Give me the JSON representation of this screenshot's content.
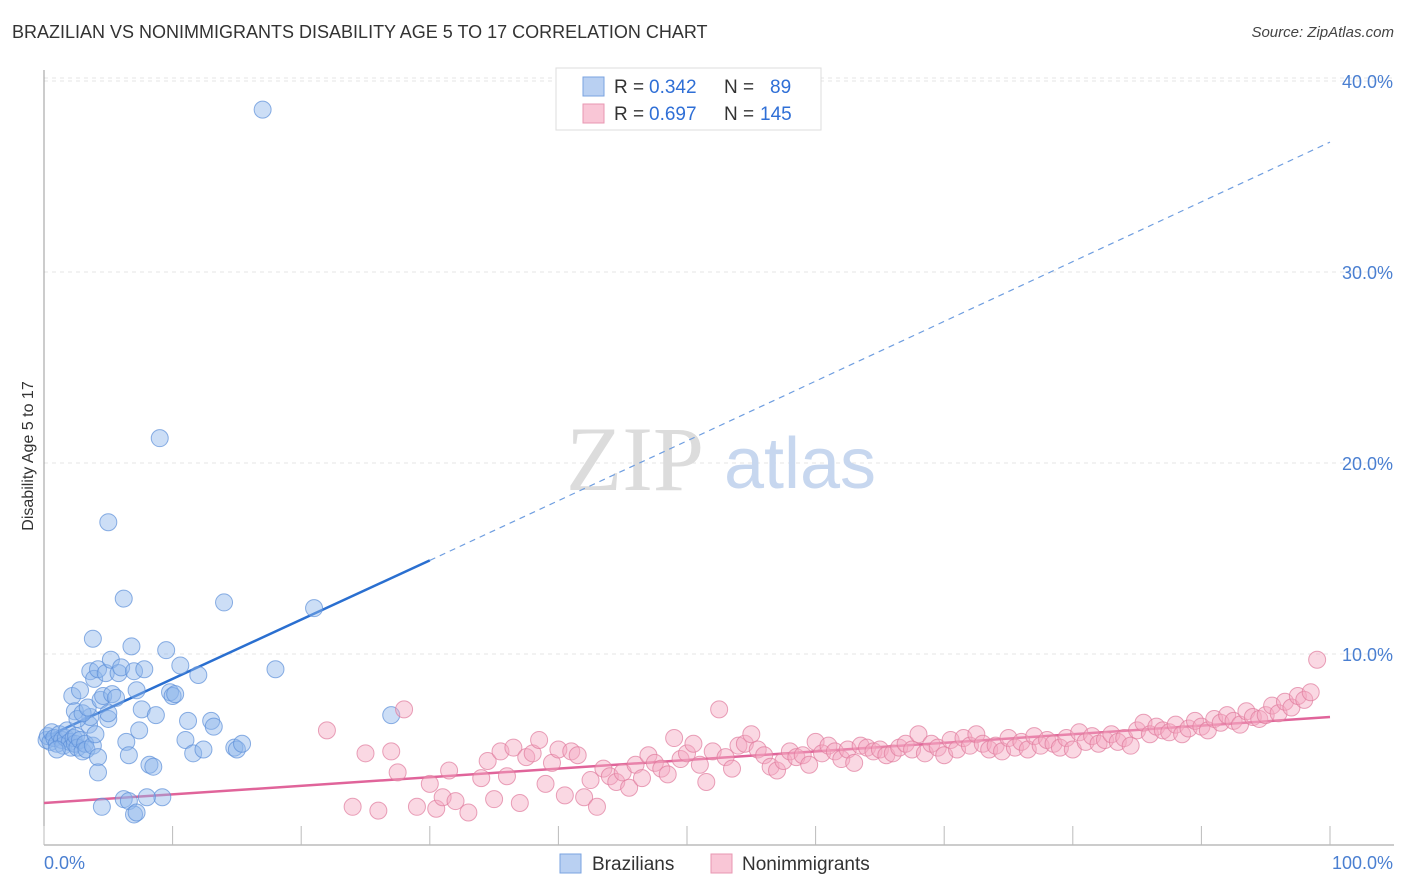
{
  "title": "BRAZILIAN VS NONIMMIGRANTS DISABILITY AGE 5 TO 17 CORRELATION CHART",
  "source": "Source: ZipAtlas.com",
  "chart_data": {
    "type": "scatter",
    "title": "BRAZILIAN VS NONIMMIGRANTS DISABILITY AGE 5 TO 17 CORRELATION CHART",
    "xlabel": "",
    "ylabel": "Disability Age 5 to 17",
    "xlim": [
      0,
      100
    ],
    "ylim": [
      0,
      40
    ],
    "x_tick_labels": [
      "0.0%",
      "100.0%"
    ],
    "y_ticks": [
      10,
      20,
      30,
      40
    ],
    "y_tick_labels": [
      "10.0%",
      "20.0%",
      "30.0%",
      "40.0%"
    ],
    "grid": true,
    "watermark": {
      "zip": "ZIP",
      "atlas": "atlas"
    },
    "legend": {
      "r_label": "R =",
      "n_label": "N =",
      "entries": [
        {
          "r": "0.342",
          "n": "89"
        },
        {
          "r": "0.697",
          "n": "145"
        }
      ]
    },
    "series": [
      {
        "name": "Brazilians",
        "color": "#8fb5ea",
        "stroke": "#5b8fd8",
        "trend": {
          "x0": 0,
          "y0": 5.6,
          "x1": 30,
          "y1": 14.9,
          "x1_dash": 100,
          "y1_dash": 36.8,
          "color": "#2a6fd0"
        },
        "points": [
          [
            0.2,
            5.5
          ],
          [
            0.3,
            5.7
          ],
          [
            0.5,
            5.4
          ],
          [
            0.6,
            5.9
          ],
          [
            0.8,
            5.6
          ],
          [
            1.0,
            5.3
          ],
          [
            1.2,
            5.8
          ],
          [
            1.4,
            5.5
          ],
          [
            1.5,
            5.2
          ],
          [
            1.7,
            5.6
          ],
          [
            1.8,
            6.0
          ],
          [
            2.0,
            5.4
          ],
          [
            2.1,
            5.1
          ],
          [
            2.3,
            5.6
          ],
          [
            2.4,
            5.3
          ],
          [
            2.5,
            5.7
          ],
          [
            2.6,
            5.1
          ],
          [
            2.8,
            5.5
          ],
          [
            3.0,
            4.9
          ],
          [
            3.2,
            5.3
          ],
          [
            3.3,
            5.0
          ],
          [
            3.5,
            6.3
          ],
          [
            3.6,
            6.7
          ],
          [
            3.8,
            5.2
          ],
          [
            4.0,
            5.8
          ],
          [
            4.2,
            4.6
          ],
          [
            2.2,
            7.8
          ],
          [
            2.4,
            7.0
          ],
          [
            2.6,
            6.6
          ],
          [
            2.8,
            8.1
          ],
          [
            3.0,
            6.9
          ],
          [
            3.4,
            7.2
          ],
          [
            3.6,
            9.1
          ],
          [
            3.8,
            10.8
          ],
          [
            3.9,
            8.7
          ],
          [
            4.2,
            9.2
          ],
          [
            4.4,
            7.6
          ],
          [
            4.6,
            7.8
          ],
          [
            4.8,
            9.0
          ],
          [
            5.0,
            6.6
          ],
          [
            5.2,
            9.7
          ],
          [
            5.3,
            7.9
          ],
          [
            5.6,
            7.7
          ],
          [
            5.8,
            9.0
          ],
          [
            6.0,
            9.3
          ],
          [
            6.2,
            12.9
          ],
          [
            6.4,
            5.4
          ],
          [
            6.6,
            4.7
          ],
          [
            6.8,
            10.4
          ],
          [
            7.0,
            9.1
          ],
          [
            7.2,
            8.1
          ],
          [
            7.4,
            6.0
          ],
          [
            7.6,
            7.1
          ],
          [
            7.8,
            9.2
          ],
          [
            8.2,
            4.2
          ],
          [
            8.5,
            4.1
          ],
          [
            8.7,
            6.8
          ],
          [
            9.2,
            2.5
          ],
          [
            9.5,
            10.2
          ],
          [
            9.8,
            8.0
          ],
          [
            10.0,
            7.8
          ],
          [
            10.2,
            7.9
          ],
          [
            10.6,
            9.4
          ],
          [
            11.0,
            5.5
          ],
          [
            11.2,
            6.5
          ],
          [
            11.6,
            4.8
          ],
          [
            12.0,
            8.9
          ],
          [
            12.4,
            5.0
          ],
          [
            13.0,
            6.5
          ],
          [
            13.2,
            6.2
          ],
          [
            14.0,
            12.7
          ],
          [
            14.8,
            5.1
          ],
          [
            15.0,
            5.0
          ],
          [
            15.4,
            5.3
          ],
          [
            17.0,
            38.5
          ],
          [
            18.0,
            9.2
          ],
          [
            21.0,
            12.4
          ],
          [
            27.0,
            6.8
          ],
          [
            9.0,
            21.3
          ],
          [
            5.0,
            16.9
          ],
          [
            4.2,
            3.8
          ],
          [
            4.5,
            2.0
          ],
          [
            5.0,
            6.9
          ],
          [
            6.2,
            2.4
          ],
          [
            6.6,
            2.3
          ],
          [
            7.0,
            1.6
          ],
          [
            7.2,
            1.7
          ],
          [
            8.0,
            2.5
          ],
          [
            1.0,
            5.0
          ]
        ]
      },
      {
        "name": "Nonimmigrants",
        "color": "#f4a9c0",
        "stroke": "#e07a9c",
        "trend": {
          "x0": 0,
          "y0": 2.2,
          "x1": 100,
          "y1": 6.7,
          "color": "#e0649a"
        },
        "points": [
          [
            22,
            6.0
          ],
          [
            24,
            2.0
          ],
          [
            25,
            4.8
          ],
          [
            26,
            1.8
          ],
          [
            27,
            4.9
          ],
          [
            27.5,
            3.8
          ],
          [
            28,
            7.1
          ],
          [
            29,
            2.0
          ],
          [
            30,
            3.2
          ],
          [
            30.5,
            1.9
          ],
          [
            31,
            2.5
          ],
          [
            31.5,
            3.9
          ],
          [
            32,
            2.3
          ],
          [
            33,
            1.7
          ],
          [
            34,
            3.5
          ],
          [
            34.5,
            4.4
          ],
          [
            35,
            2.4
          ],
          [
            35.5,
            4.9
          ],
          [
            36,
            3.6
          ],
          [
            36.5,
            5.1
          ],
          [
            37,
            2.2
          ],
          [
            37.5,
            4.6
          ],
          [
            38,
            4.8
          ],
          [
            38.5,
            5.5
          ],
          [
            39,
            3.2
          ],
          [
            39.5,
            4.3
          ],
          [
            40,
            5.0
          ],
          [
            40.5,
            2.6
          ],
          [
            41,
            4.9
          ],
          [
            41.5,
            4.7
          ],
          [
            42,
            2.5
          ],
          [
            42.5,
            3.4
          ],
          [
            43,
            2.0
          ],
          [
            43.5,
            4.0
          ],
          [
            44,
            3.6
          ],
          [
            44.5,
            3.3
          ],
          [
            45,
            3.8
          ],
          [
            45.5,
            3.0
          ],
          [
            46,
            4.2
          ],
          [
            46.5,
            3.5
          ],
          [
            47,
            4.7
          ],
          [
            47.5,
            4.3
          ],
          [
            48,
            4.0
          ],
          [
            48.5,
            3.7
          ],
          [
            49,
            5.6
          ],
          [
            49.5,
            4.5
          ],
          [
            50,
            4.8
          ],
          [
            50.5,
            5.3
          ],
          [
            51,
            4.2
          ],
          [
            51.5,
            3.3
          ],
          [
            52,
            4.9
          ],
          [
            52.5,
            7.1
          ],
          [
            53,
            4.6
          ],
          [
            53.5,
            4.0
          ],
          [
            54,
            5.2
          ],
          [
            54.5,
            5.3
          ],
          [
            55,
            5.8
          ],
          [
            55.5,
            5.0
          ],
          [
            56,
            4.7
          ],
          [
            56.5,
            4.1
          ],
          [
            57,
            3.9
          ],
          [
            57.5,
            4.4
          ],
          [
            58,
            4.9
          ],
          [
            58.5,
            4.6
          ],
          [
            59,
            4.7
          ],
          [
            59.5,
            4.2
          ],
          [
            60,
            5.4
          ],
          [
            60.5,
            4.8
          ],
          [
            61,
            5.2
          ],
          [
            61.5,
            4.9
          ],
          [
            62,
            4.5
          ],
          [
            62.5,
            5.0
          ],
          [
            63,
            4.3
          ],
          [
            63.5,
            5.2
          ],
          [
            64,
            5.1
          ],
          [
            64.5,
            4.9
          ],
          [
            65,
            5.0
          ],
          [
            65.5,
            4.7
          ],
          [
            66,
            4.8
          ],
          [
            66.5,
            5.1
          ],
          [
            67,
            5.3
          ],
          [
            67.5,
            5.0
          ],
          [
            68,
            5.8
          ],
          [
            68.5,
            4.8
          ],
          [
            69,
            5.3
          ],
          [
            69.5,
            5.1
          ],
          [
            70,
            4.7
          ],
          [
            70.5,
            5.5
          ],
          [
            71,
            5.0
          ],
          [
            71.5,
            5.6
          ],
          [
            72,
            5.2
          ],
          [
            72.5,
            5.8
          ],
          [
            73,
            5.3
          ],
          [
            73.5,
            5.0
          ],
          [
            74,
            5.2
          ],
          [
            74.5,
            4.9
          ],
          [
            75,
            5.6
          ],
          [
            75.5,
            5.1
          ],
          [
            76,
            5.4
          ],
          [
            76.5,
            5.0
          ],
          [
            77,
            5.7
          ],
          [
            77.5,
            5.2
          ],
          [
            78,
            5.5
          ],
          [
            78.5,
            5.3
          ],
          [
            79,
            5.1
          ],
          [
            79.5,
            5.6
          ],
          [
            80,
            5.0
          ],
          [
            80.5,
            5.9
          ],
          [
            81,
            5.4
          ],
          [
            81.5,
            5.7
          ],
          [
            82,
            5.3
          ],
          [
            82.5,
            5.5
          ],
          [
            83,
            5.8
          ],
          [
            83.5,
            5.4
          ],
          [
            84,
            5.6
          ],
          [
            84.5,
            5.2
          ],
          [
            85,
            6.0
          ],
          [
            85.5,
            6.4
          ],
          [
            86,
            5.8
          ],
          [
            86.5,
            6.2
          ],
          [
            87,
            6.0
          ],
          [
            87.5,
            5.9
          ],
          [
            88,
            6.3
          ],
          [
            88.5,
            5.8
          ],
          [
            89,
            6.1
          ],
          [
            89.5,
            6.5
          ],
          [
            90,
            6.2
          ],
          [
            90.5,
            6.0
          ],
          [
            91,
            6.6
          ],
          [
            91.5,
            6.4
          ],
          [
            92,
            6.8
          ],
          [
            92.5,
            6.5
          ],
          [
            93,
            6.3
          ],
          [
            93.5,
            7.0
          ],
          [
            94,
            6.7
          ],
          [
            94.5,
            6.6
          ],
          [
            95,
            6.8
          ],
          [
            95.5,
            7.3
          ],
          [
            96,
            6.9
          ],
          [
            96.5,
            7.5
          ],
          [
            97,
            7.2
          ],
          [
            97.5,
            7.8
          ],
          [
            98,
            7.6
          ],
          [
            98.5,
            8.0
          ],
          [
            99,
            9.7
          ]
        ]
      }
    ]
  }
}
